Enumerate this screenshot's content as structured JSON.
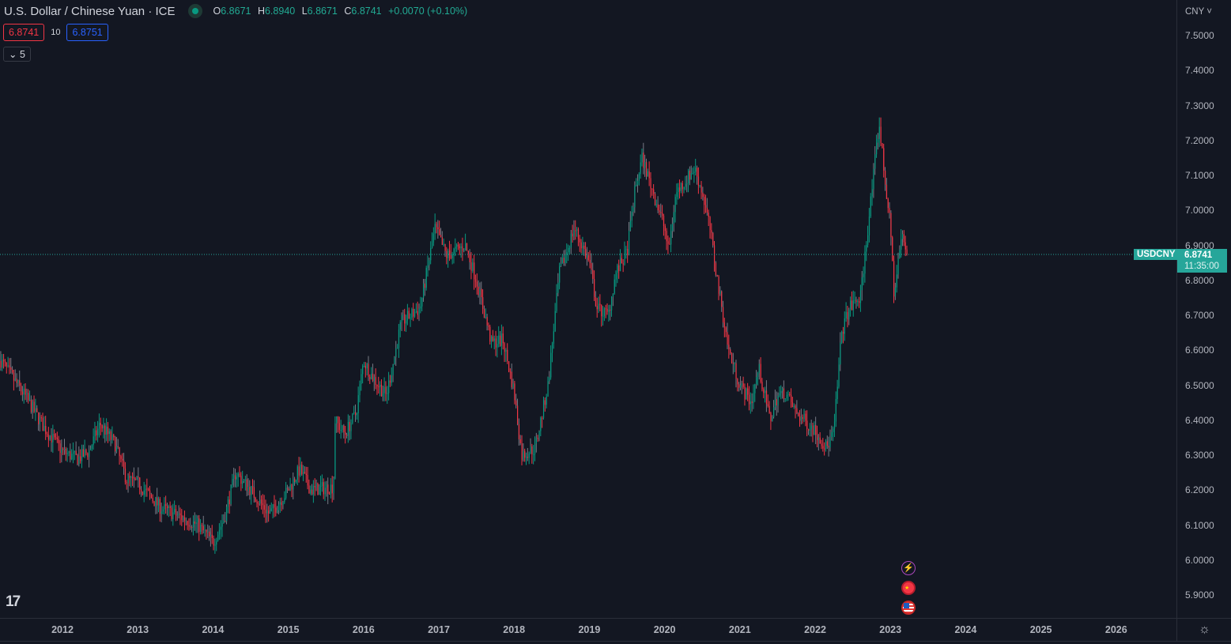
{
  "header": {
    "title": "U.S. Dollar / Chinese Yuan · ICE",
    "ohlc": {
      "o_label": "O",
      "o": "6.8671",
      "h_label": "H",
      "h": "6.8940",
      "l_label": "L",
      "l": "6.8671",
      "c_label": "C",
      "c": "6.8741",
      "change": "+0.0070 (+0.10%)"
    },
    "sell_price": "6.8741",
    "spread": "10",
    "buy_price": "6.8751",
    "collapse_label": "5"
  },
  "price_axis": {
    "currency": "CNY ˅",
    "labels": [
      "7.5000",
      "7.4000",
      "7.3000",
      "7.2000",
      "7.1000",
      "7.0000",
      "6.9000",
      "6.8000",
      "6.7000",
      "6.6000",
      "6.5000",
      "6.4000",
      "6.3000",
      "6.2000",
      "6.1000",
      "6.0000",
      "5.9000"
    ],
    "symbol_tag": "USDCNY",
    "last_price": "6.8741",
    "countdown": "11:35:00"
  },
  "time_axis": {
    "labels": [
      "2012",
      "2013",
      "2014",
      "2015",
      "2016",
      "2017",
      "2018",
      "2019",
      "2020",
      "2021",
      "2022",
      "2023",
      "2024",
      "2025",
      "2026"
    ]
  },
  "colors": {
    "background": "#131722",
    "up": "#089981",
    "down": "#f23645",
    "neutral": "#787b86",
    "last": "#26a69a"
  },
  "chart_data": {
    "type": "candlestick",
    "title": "U.S. Dollar / Chinese Yuan · ICE",
    "interval": "weekly",
    "ylim": [
      5.85,
      7.55
    ],
    "xlim": [
      2011.18,
      2026.8
    ],
    "last_close": 6.8741,
    "path": [
      [
        2011.18,
        6.57
      ],
      [
        2011.5,
        6.47
      ],
      [
        2011.75,
        6.38
      ],
      [
        2012.0,
        6.31
      ],
      [
        2012.2,
        6.29
      ],
      [
        2012.35,
        6.31
      ],
      [
        2012.5,
        6.39
      ],
      [
        2012.7,
        6.33
      ],
      [
        2012.85,
        6.23
      ],
      [
        2013.0,
        6.22
      ],
      [
        2013.3,
        6.15
      ],
      [
        2013.5,
        6.13
      ],
      [
        2013.8,
        6.1
      ],
      [
        2014.0,
        6.05
      ],
      [
        2014.15,
        6.12
      ],
      [
        2014.3,
        6.25
      ],
      [
        2014.5,
        6.2
      ],
      [
        2014.75,
        6.13
      ],
      [
        2015.0,
        6.2
      ],
      [
        2015.15,
        6.26
      ],
      [
        2015.3,
        6.2
      ],
      [
        2015.6,
        6.21
      ],
      [
        2015.62,
        6.4
      ],
      [
        2015.75,
        6.36
      ],
      [
        2015.9,
        6.42
      ],
      [
        2016.0,
        6.57
      ],
      [
        2016.1,
        6.53
      ],
      [
        2016.3,
        6.47
      ],
      [
        2016.4,
        6.57
      ],
      [
        2016.5,
        6.68
      ],
      [
        2016.75,
        6.72
      ],
      [
        2016.95,
        6.95
      ],
      [
        2017.1,
        6.87
      ],
      [
        2017.35,
        6.9
      ],
      [
        2017.5,
        6.8
      ],
      [
        2017.7,
        6.62
      ],
      [
        2017.85,
        6.63
      ],
      [
        2018.0,
        6.48
      ],
      [
        2018.1,
        6.3
      ],
      [
        2018.28,
        6.32
      ],
      [
        2018.45,
        6.5
      ],
      [
        2018.6,
        6.82
      ],
      [
        2018.8,
        6.95
      ],
      [
        2018.9,
        6.9
      ],
      [
        2019.0,
        6.85
      ],
      [
        2019.1,
        6.72
      ],
      [
        2019.25,
        6.7
      ],
      [
        2019.35,
        6.82
      ],
      [
        2019.5,
        6.88
      ],
      [
        2019.6,
        7.05
      ],
      [
        2019.7,
        7.15
      ],
      [
        2019.85,
        7.05
      ],
      [
        2020.0,
        6.95
      ],
      [
        2020.05,
        6.88
      ],
      [
        2020.15,
        7.05
      ],
      [
        2020.4,
        7.12
      ],
      [
        2020.5,
        7.05
      ],
      [
        2020.6,
        6.95
      ],
      [
        2020.7,
        6.8
      ],
      [
        2020.85,
        6.6
      ],
      [
        2021.0,
        6.5
      ],
      [
        2021.15,
        6.45
      ],
      [
        2021.25,
        6.55
      ],
      [
        2021.4,
        6.4
      ],
      [
        2021.5,
        6.47
      ],
      [
        2021.6,
        6.48
      ],
      [
        2021.75,
        6.42
      ],
      [
        2022.0,
        6.37
      ],
      [
        2022.15,
        6.32
      ],
      [
        2022.25,
        6.37
      ],
      [
        2022.35,
        6.65
      ],
      [
        2022.45,
        6.72
      ],
      [
        2022.6,
        6.75
      ],
      [
        2022.7,
        6.95
      ],
      [
        2022.8,
        7.15
      ],
      [
        2022.85,
        7.25
      ],
      [
        2022.92,
        7.1
      ],
      [
        2023.0,
        6.95
      ],
      [
        2023.05,
        6.75
      ],
      [
        2023.1,
        6.85
      ],
      [
        2023.15,
        6.93
      ],
      [
        2023.22,
        6.8741
      ]
    ]
  }
}
